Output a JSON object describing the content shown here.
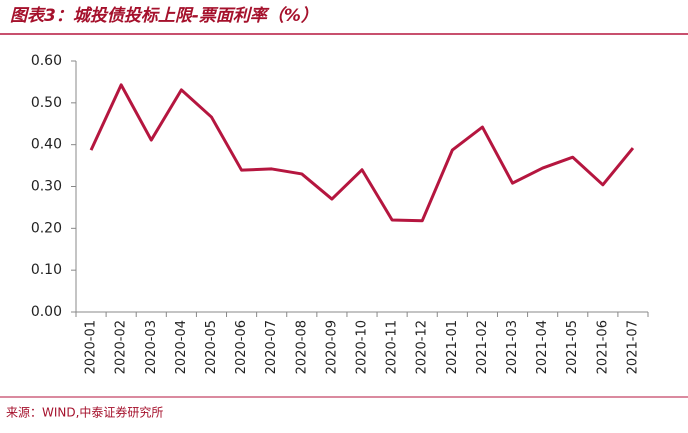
{
  "chart_data": {
    "type": "line",
    "title": "图表3：城投债投标上限-票面利率（%）",
    "source": "来源：WIND,中泰证券研究所",
    "categories": [
      "2020-01",
      "2020-02",
      "2020-03",
      "2020-04",
      "2020-05",
      "2020-06",
      "2020-07",
      "2020-08",
      "2020-09",
      "2020-10",
      "2020-11",
      "2020-12",
      "2021-01",
      "2021-02",
      "2021-03",
      "2021-04",
      "2021-05",
      "2021-06",
      "2021-07"
    ],
    "values": [
      0.387,
      0.543,
      0.411,
      0.531,
      0.466,
      0.339,
      0.342,
      0.33,
      0.27,
      0.34,
      0.22,
      0.218,
      0.387,
      0.442,
      0.308,
      0.344,
      0.37,
      0.304,
      0.392
    ],
    "color": "#b5163f",
    "ylim": [
      0,
      0.6
    ],
    "yticks": [
      {
        "value": 0,
        "label": "0.00"
      },
      {
        "value": 0.1,
        "label": "0.10"
      },
      {
        "value": 0.2,
        "label": "0.20"
      },
      {
        "value": 0.3,
        "label": "0.30"
      },
      {
        "value": 0.4,
        "label": "0.40"
      },
      {
        "value": 0.5,
        "label": "0.50"
      },
      {
        "value": 0.6,
        "label": "0.60"
      }
    ],
    "grid": false
  }
}
